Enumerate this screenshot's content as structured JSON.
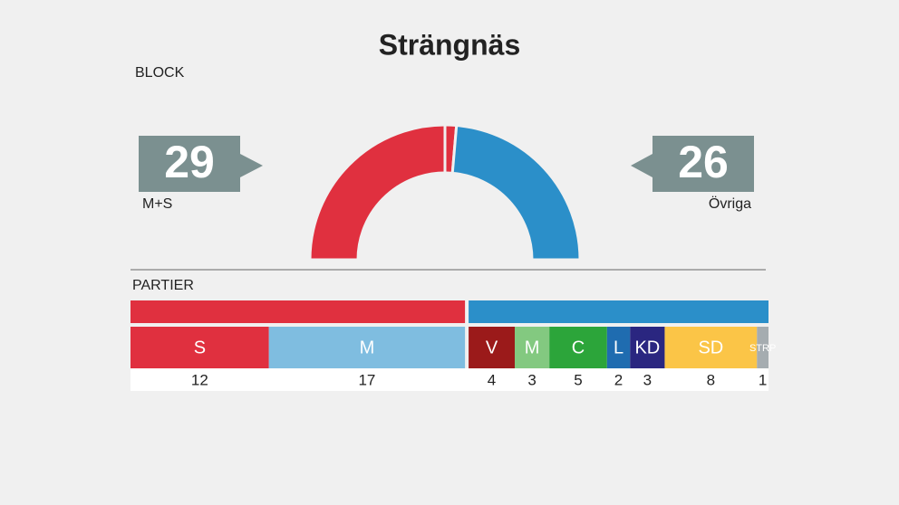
{
  "title": "Strängnäs",
  "block_heading": "BLOCK",
  "parties_heading": "PARTIER",
  "chart_data": {
    "type": "seats",
    "blocks": [
      {
        "name": "M+S",
        "seats": 29,
        "color": "#e0303f",
        "parties": [
          {
            "name": "S",
            "seats": 12,
            "color": "#e0303f"
          },
          {
            "name": "M",
            "seats": 17,
            "color": "#7fbde0"
          }
        ]
      },
      {
        "name": "Övriga",
        "seats": 26,
        "color": "#2b8fc9",
        "parties": [
          {
            "name": "V",
            "seats": 4,
            "color": "#9b1a1a"
          },
          {
            "name": "M",
            "seats": 3,
            "color": "#83c980"
          },
          {
            "name": "C",
            "seats": 5,
            "color": "#2ca53a"
          },
          {
            "name": "L",
            "seats": 2,
            "color": "#1f6cb0"
          },
          {
            "name": "KD",
            "seats": 3,
            "color": "#2a2680"
          },
          {
            "name": "SD",
            "seats": 8,
            "color": "#fbc547"
          },
          {
            "name": "STRP",
            "seats": 1,
            "color": "#a5acb0"
          }
        ]
      }
    ]
  }
}
